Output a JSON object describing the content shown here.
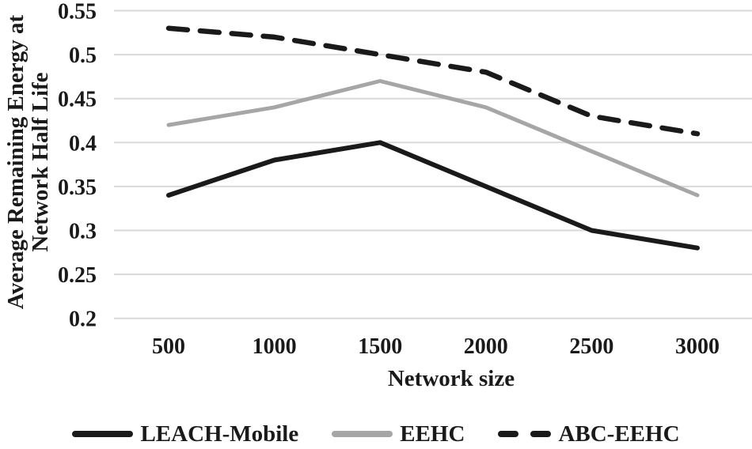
{
  "figure": {
    "background": "#ffffff",
    "text_color": "#1a1a1a",
    "gridline_color": "#d9d9d9"
  },
  "chart_data": {
    "type": "line",
    "title": "",
    "xlabel": "Network size",
    "ylabel": "Average Remaining Energy at Network Half Life",
    "ylabel_lines": [
      "Average Remaining Energy at",
      "Network Half Life"
    ],
    "x": [
      500,
      1000,
      1500,
      2000,
      2500,
      3000
    ],
    "xtick_labels": [
      "500",
      "1000",
      "1500",
      "2000",
      "2500",
      "3000"
    ],
    "yticks": [
      0.55,
      0.5,
      0.45,
      0.4,
      0.35,
      0.3,
      0.25,
      0.2
    ],
    "ytick_labels": [
      "0.55",
      "0.5",
      "0.45",
      "0.4",
      "0.35",
      "0.3",
      "0.25",
      "0.2"
    ],
    "ylim": [
      0.2,
      0.55
    ],
    "grid": "horizontal",
    "legend_position": "bottom",
    "series": [
      {
        "name": "LEACH-Mobile",
        "color": "#1a1a1a",
        "style": "solid",
        "values": [
          0.34,
          0.38,
          0.4,
          0.35,
          0.3,
          0.28
        ]
      },
      {
        "name": "EEHC",
        "color": "#a6a6a6",
        "style": "solid",
        "values": [
          0.42,
          0.44,
          0.47,
          0.44,
          0.39,
          0.34
        ]
      },
      {
        "name": "ABC-EEHC",
        "color": "#1a1a1a",
        "style": "dashed",
        "values": [
          0.53,
          0.52,
          0.5,
          0.48,
          0.43,
          0.41
        ]
      }
    ]
  },
  "legend": {
    "items": [
      {
        "label": "LEACH-Mobile",
        "swatch": "solid-black-line"
      },
      {
        "label": "EEHC",
        "swatch": "solid-gray-line"
      },
      {
        "label": "ABC-EEHC",
        "swatch": "dashed-black-line"
      }
    ]
  }
}
